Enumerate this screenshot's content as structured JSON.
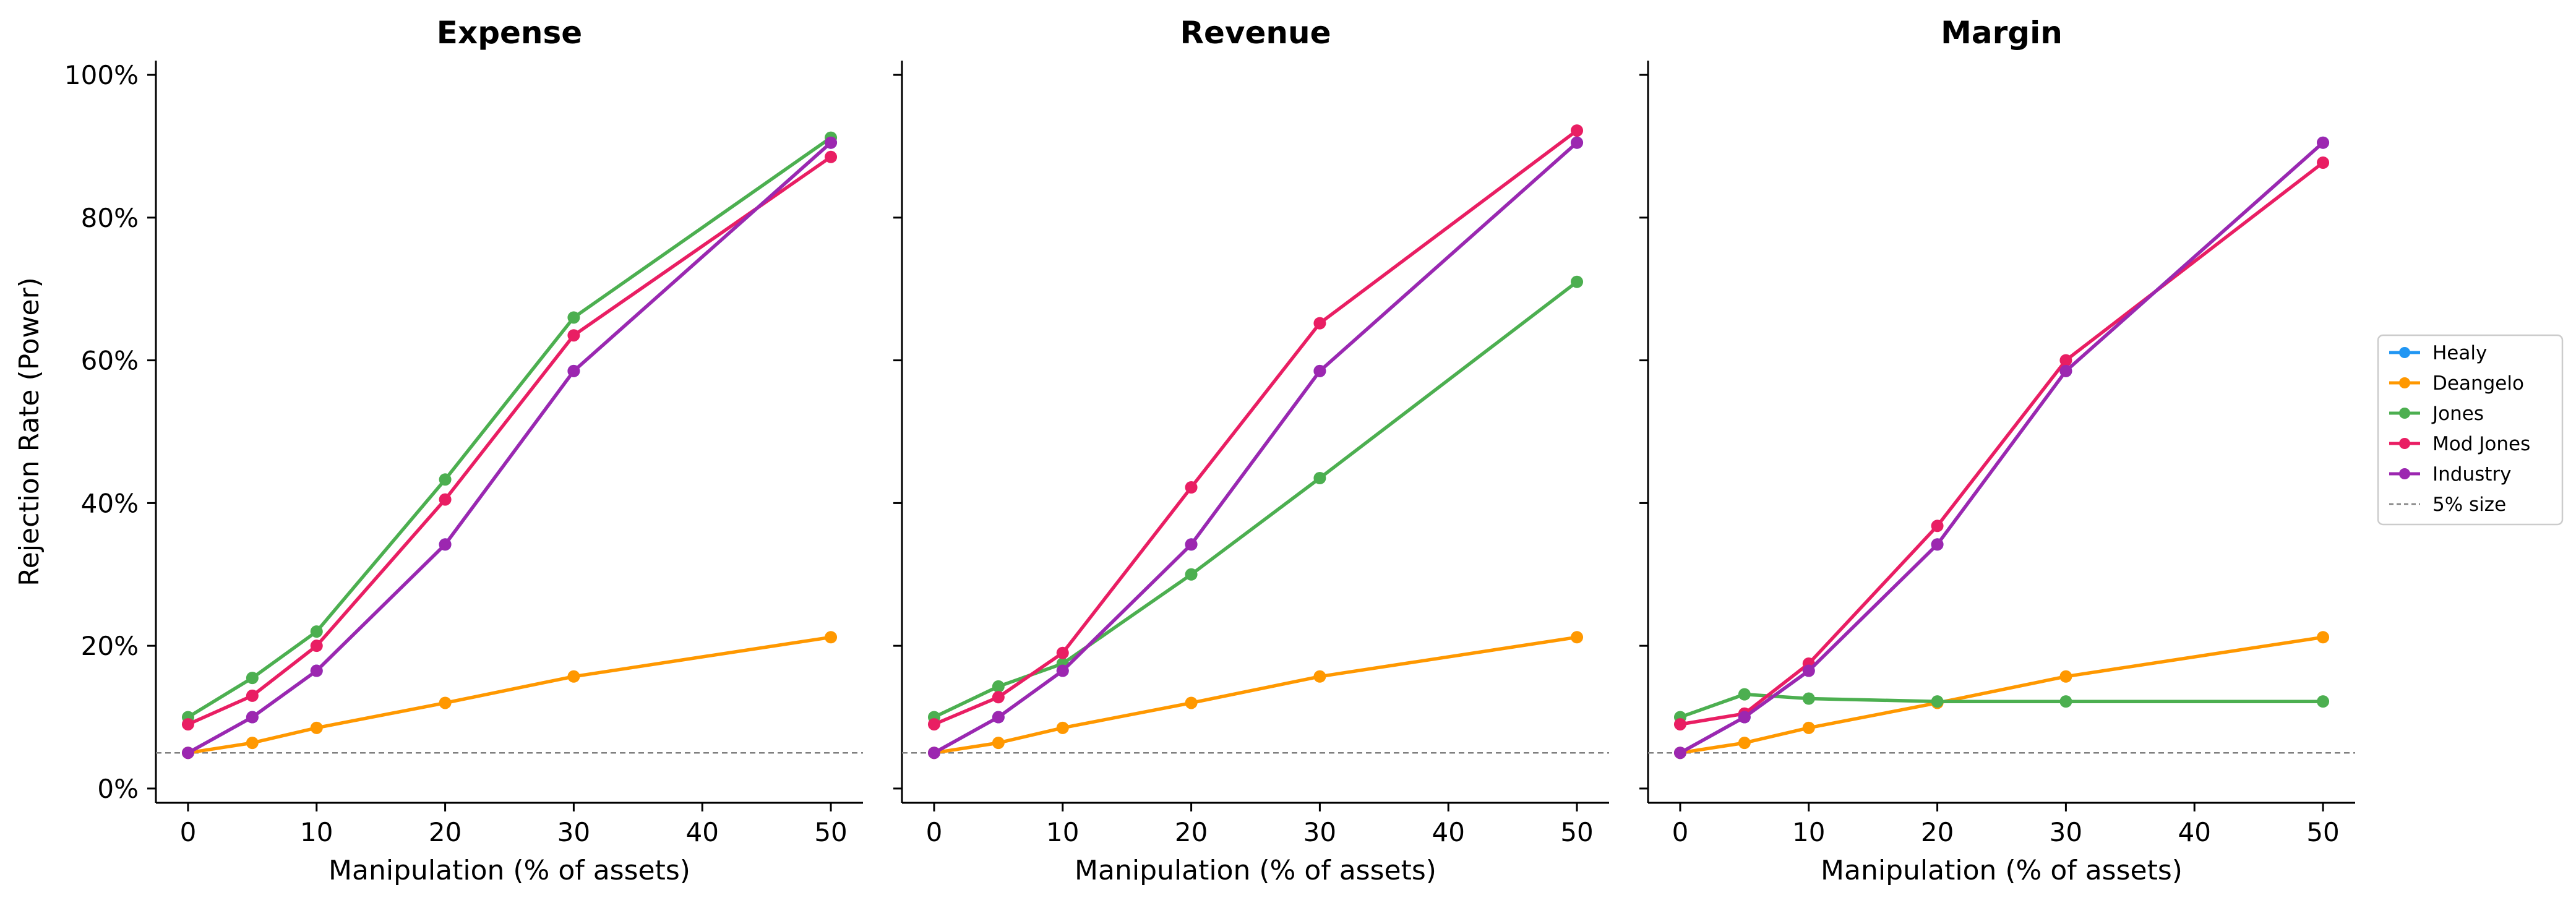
{
  "chart_data": [
    {
      "type": "line",
      "title": "Expense",
      "xlabel": "Manipulation (% of assets)",
      "ylabel": "Rejection Rate (Power)",
      "x": [
        0,
        5,
        10,
        20,
        30,
        50
      ],
      "xlim": [
        -2.5,
        52.5
      ],
      "ylim": [
        -0.02,
        1.02
      ],
      "xticks": [
        "0",
        "10",
        "20",
        "30",
        "40",
        "50"
      ],
      "yticks": [
        "0%",
        "20%",
        "40%",
        "60%",
        "80%",
        "100%"
      ],
      "reference_line": {
        "label": "5% size",
        "y": 0.05
      },
      "series": [
        {
          "name": "Healy",
          "values": [
            0.05,
            0.1,
            0.165,
            0.342,
            0.585,
            0.905
          ]
        },
        {
          "name": "Deangelo",
          "values": [
            0.05,
            0.064,
            0.085,
            0.12,
            0.157,
            0.212
          ]
        },
        {
          "name": "Jones",
          "values": [
            0.1,
            0.155,
            0.22,
            0.433,
            0.66,
            0.912
          ]
        },
        {
          "name": "Mod Jones",
          "values": [
            0.09,
            0.13,
            0.2,
            0.405,
            0.635,
            0.885
          ]
        },
        {
          "name": "Industry",
          "values": [
            0.05,
            0.1,
            0.165,
            0.342,
            0.585,
            0.905
          ]
        }
      ]
    },
    {
      "type": "line",
      "title": "Revenue",
      "xlabel": "Manipulation (% of assets)",
      "x": [
        0,
        5,
        10,
        20,
        30,
        50
      ],
      "xlim": [
        -2.5,
        52.5
      ],
      "ylim": [
        -0.02,
        1.02
      ],
      "xticks": [
        "0",
        "10",
        "20",
        "30",
        "40",
        "50"
      ],
      "reference_line": {
        "label": "5% size",
        "y": 0.05
      },
      "series": [
        {
          "name": "Healy",
          "values": [
            0.05,
            0.1,
            0.165,
            0.342,
            0.585,
            0.905
          ]
        },
        {
          "name": "Deangelo",
          "values": [
            0.05,
            0.064,
            0.085,
            0.12,
            0.157,
            0.212
          ]
        },
        {
          "name": "Jones",
          "values": [
            0.1,
            0.143,
            0.175,
            0.3,
            0.435,
            0.71
          ]
        },
        {
          "name": "Mod Jones",
          "values": [
            0.09,
            0.128,
            0.19,
            0.422,
            0.652,
            0.922
          ]
        },
        {
          "name": "Industry",
          "values": [
            0.05,
            0.1,
            0.165,
            0.342,
            0.585,
            0.905
          ]
        }
      ]
    },
    {
      "type": "line",
      "title": "Margin",
      "xlabel": "Manipulation (% of assets)",
      "x": [
        0,
        5,
        10,
        20,
        30,
        50
      ],
      "xlim": [
        -2.5,
        52.5
      ],
      "ylim": [
        -0.02,
        1.02
      ],
      "xticks": [
        "0",
        "10",
        "20",
        "30",
        "40",
        "50"
      ],
      "reference_line": {
        "label": "5% size",
        "y": 0.05
      },
      "series": [
        {
          "name": "Healy",
          "values": [
            0.05,
            0.1,
            0.165,
            0.342,
            0.585,
            0.905
          ]
        },
        {
          "name": "Deangelo",
          "values": [
            0.05,
            0.064,
            0.085,
            0.12,
            0.157,
            0.212
          ]
        },
        {
          "name": "Jones",
          "values": [
            0.1,
            0.132,
            0.126,
            0.122,
            0.122,
            0.122
          ]
        },
        {
          "name": "Mod Jones",
          "values": [
            0.09,
            0.105,
            0.175,
            0.368,
            0.6,
            0.877
          ]
        },
        {
          "name": "Industry",
          "values": [
            0.05,
            0.1,
            0.165,
            0.342,
            0.585,
            0.905
          ]
        }
      ]
    }
  ],
  "legend": {
    "placement": "right",
    "entries": [
      {
        "label": "Healy",
        "color": "#2196F3",
        "style": "line-marker"
      },
      {
        "label": "Deangelo",
        "color": "#FF9800",
        "style": "line-marker"
      },
      {
        "label": "Jones",
        "color": "#4CAF50",
        "style": "line-marker"
      },
      {
        "label": "Mod Jones",
        "color": "#E91E63",
        "style": "line-marker"
      },
      {
        "label": "Industry",
        "color": "#9C27B0",
        "style": "line-marker"
      },
      {
        "label": "5% size",
        "color": "#808080",
        "style": "dashed"
      }
    ]
  },
  "colors": {
    "Healy": "#2196F3",
    "Deangelo": "#FF9800",
    "Jones": "#4CAF50",
    "Mod Jones": "#E91E63",
    "Industry": "#9C27B0",
    "reference": "#808080"
  }
}
